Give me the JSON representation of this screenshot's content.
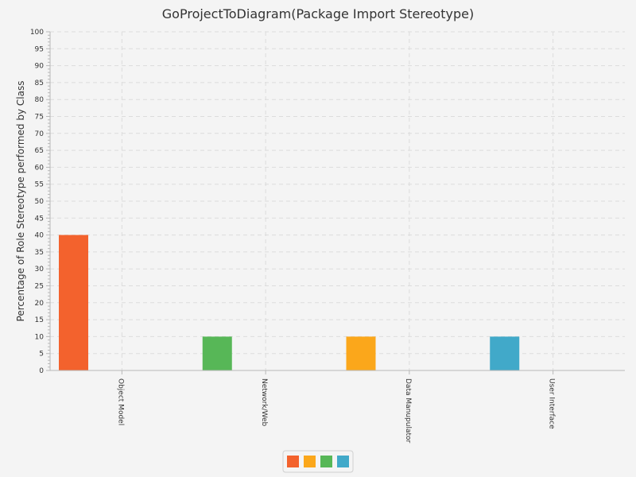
{
  "chart_data": {
    "type": "bar",
    "title": "GoProjectToDiagram(Package Import Stereotype)",
    "ylabel": "Percentage of Role Stereotype performed by Class",
    "xlabel": "",
    "ylim": [
      0,
      100
    ],
    "ytick_step": 5,
    "grid": true,
    "legend_placement": "bottom-center",
    "categories": [
      "Object Model",
      "Network/Web",
      "Data Manupulator",
      "User Interface"
    ],
    "series": [
      {
        "color": "#f3622d",
        "values": [
          40,
          0,
          0,
          0
        ]
      },
      {
        "color": "#fba71b",
        "values": [
          0,
          0,
          10,
          0
        ]
      },
      {
        "color": "#57b757",
        "values": [
          0,
          10,
          0,
          0
        ]
      },
      {
        "color": "#41a9c9",
        "values": [
          0,
          0,
          0,
          10
        ]
      }
    ]
  }
}
